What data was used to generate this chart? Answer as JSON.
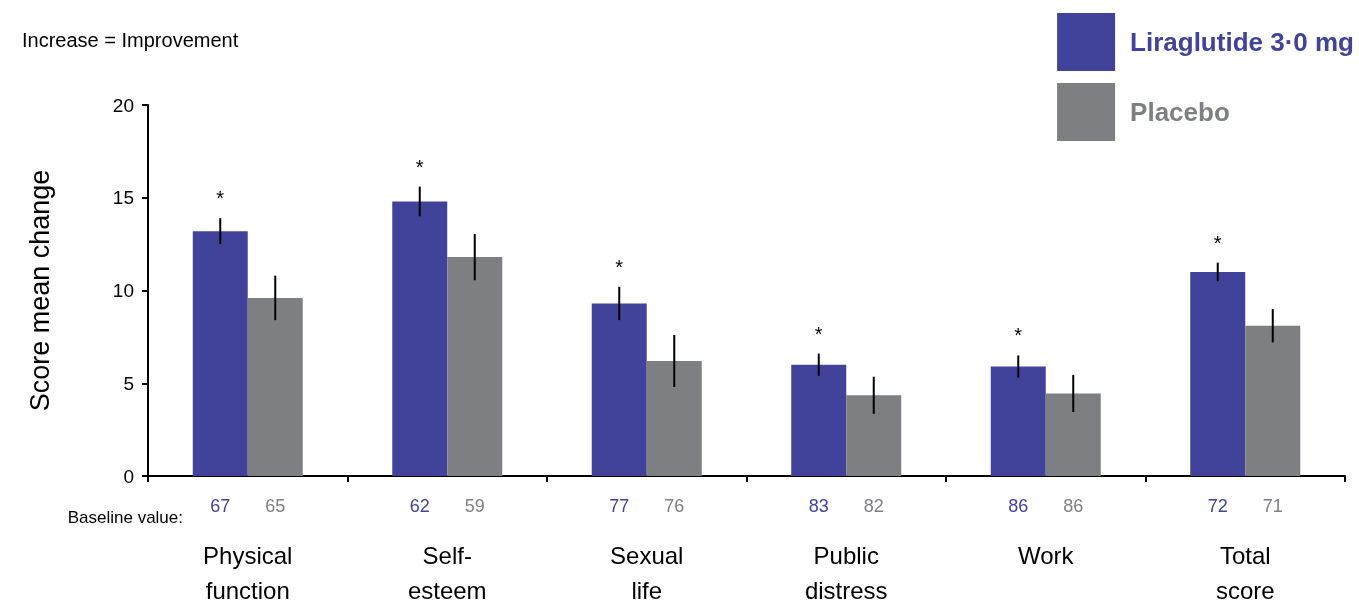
{
  "chart_data": {
    "type": "bar",
    "ylabel": "Score mean change",
    "categories": [
      "Physical function",
      "Self-esteem",
      "Sexual life",
      "Public distress",
      "Work",
      "Total score"
    ],
    "series": [
      {
        "name": "Liraglutide 3·0 mg",
        "color": "#41439b",
        "values": [
          13.2,
          14.8,
          9.3,
          6.0,
          5.9,
          11.0
        ],
        "errors": [
          0.7,
          0.8,
          0.9,
          0.6,
          0.6,
          0.5
        ]
      },
      {
        "name": "Placebo",
        "color": "#7e7f83",
        "values": [
          9.6,
          11.8,
          6.2,
          4.35,
          4.45,
          8.1
        ],
        "errors": [
          1.2,
          1.25,
          1.4,
          1.0,
          1.0,
          0.9
        ]
      }
    ],
    "ylim": [
      0,
      20
    ],
    "yticks": [
      0,
      5,
      10,
      15,
      20
    ],
    "grid": false,
    "legend": "top right",
    "annotations": [
      "Increase = Improvement",
      "Baseline value:",
      "*",
      "*",
      "*",
      "*",
      "*",
      "*",
      "67",
      "65",
      "62",
      "59",
      "77",
      "76",
      "83",
      "82",
      "86",
      "86",
      "72",
      "71"
    ]
  }
}
